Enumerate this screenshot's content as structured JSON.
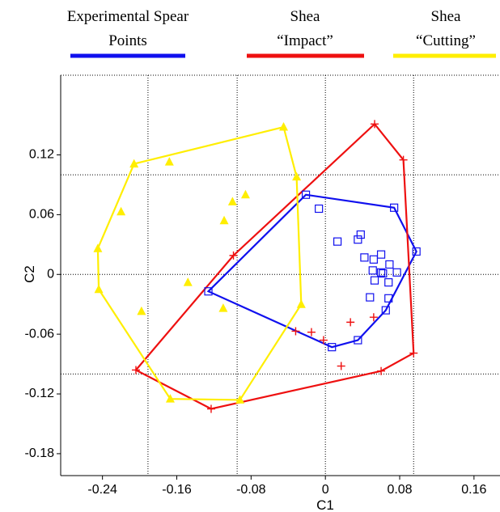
{
  "chart_data": {
    "type": "scatter",
    "x_label": "C1",
    "y_label": "C2",
    "xlim": [
      -0.285,
      0.188
    ],
    "ylim": [
      -0.202,
      0.2
    ],
    "xticks": [
      -0.24,
      -0.16,
      -0.08,
      0,
      0.08,
      0.16
    ],
    "yticks": [
      0.12,
      0.06,
      0,
      -0.06,
      -0.12,
      -0.18
    ],
    "grid_x": [
      -0.191,
      -0.095,
      0,
      0.095
    ],
    "grid_y": [
      0.1,
      0,
      -0.1
    ],
    "hull": true,
    "series": [
      {
        "name": "Experimental Spear Points",
        "color": "#1010ee",
        "marker": "square",
        "x": [
          -0.021,
          0.074,
          0.098,
          0.065,
          0.035,
          0.007,
          -0.126,
          -0.007,
          0.013,
          0.035,
          0.038,
          0.042,
          0.052,
          0.06,
          0.051,
          0.06,
          0.062,
          0.069,
          0.077,
          0.053,
          0.068,
          0.048,
          0.068
        ],
        "values": [
          0.08,
          0.067,
          0.023,
          -0.036,
          -0.066,
          -0.073,
          -0.017,
          0.066,
          0.033,
          0.035,
          0.04,
          0.017,
          0.015,
          0.02,
          0.004,
          0.002,
          0.001,
          0.01,
          0.002,
          -0.006,
          -0.008,
          -0.023,
          -0.024
        ]
      },
      {
        "name": "Shea “Impact”",
        "color": "#ee1010",
        "marker": "plus",
        "x": [
          0.053,
          0.084,
          0.095,
          0.06,
          -0.123,
          -0.204,
          -0.099,
          -0.032,
          -0.015,
          -0.002,
          0.027,
          0.052,
          0.017
        ],
        "values": [
          0.151,
          0.115,
          -0.079,
          -0.097,
          -0.135,
          -0.096,
          0.019,
          -0.057,
          -0.058,
          -0.066,
          -0.048,
          -0.043,
          -0.092
        ]
      },
      {
        "name": "Shea “Cutting”",
        "color": "#ffee00",
        "marker": "triangle",
        "x": [
          -0.045,
          -0.031,
          -0.026,
          -0.092,
          -0.167,
          -0.244,
          -0.245,
          -0.206,
          -0.168,
          -0.086,
          -0.1,
          -0.22,
          -0.109,
          -0.148,
          -0.198,
          -0.11
        ],
        "values": [
          0.148,
          0.098,
          -0.03,
          -0.126,
          -0.125,
          -0.015,
          0.026,
          0.111,
          0.113,
          0.08,
          0.073,
          0.063,
          0.054,
          -0.008,
          -0.037,
          -0.034
        ]
      }
    ]
  }
}
